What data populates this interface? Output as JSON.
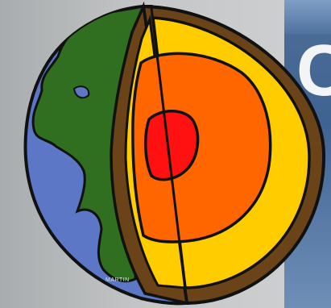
{
  "image": {
    "subject": "earth-layers-cutaway-illustration",
    "credit": "MARTIN",
    "colors": {
      "ocean": "#5d77c7",
      "land": "#2f6f1f",
      "crust": "#6b4319",
      "mantle": "#ffcc00",
      "outer_core": "#ff6600",
      "inner_core": "#ff1111",
      "slide_accent": "#4a6b96"
    }
  }
}
